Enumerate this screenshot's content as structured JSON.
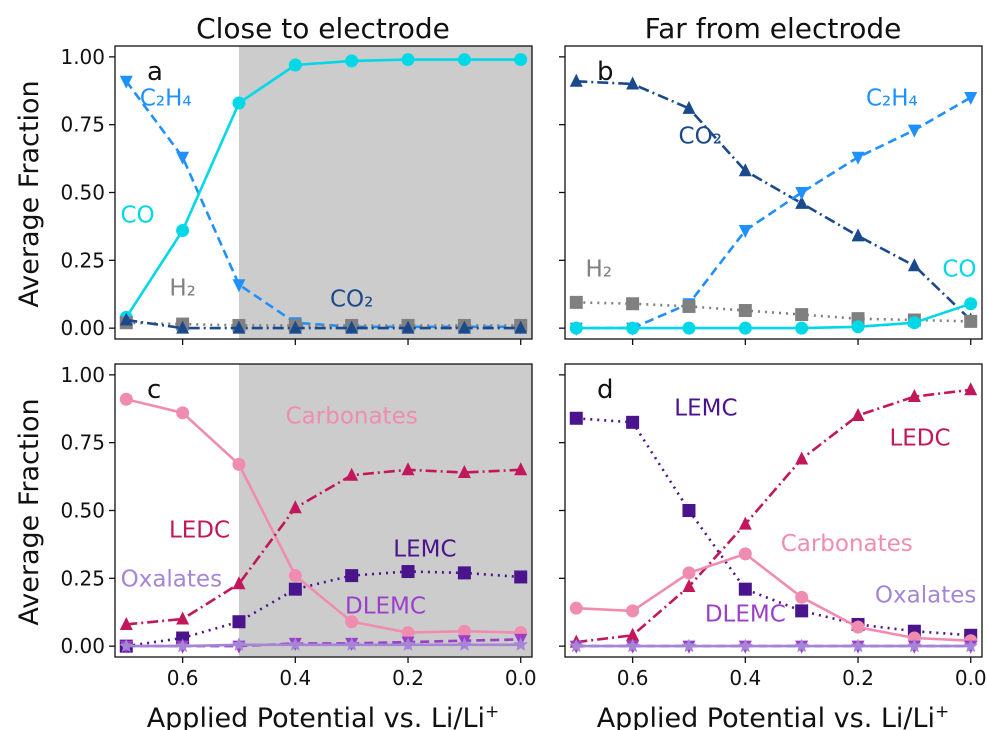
{
  "chart_data": [
    {
      "type": "line",
      "panel": "a",
      "title": "Close to electrode",
      "ylabel": "Average Fraction",
      "xlabel": "",
      "xlim": [
        0.72,
        -0.02
      ],
      "ylim": [
        -0.04,
        1.04
      ],
      "xticks": [
        "0.6",
        "0.4",
        "0.2",
        "0.0"
      ],
      "yticks": [
        "0.00",
        "0.25",
        "0.50",
        "0.75",
        "1.00"
      ],
      "shade_x": [
        0.5,
        0.0
      ],
      "x": [
        0.7,
        0.6,
        0.5,
        0.4,
        0.3,
        0.2,
        0.1,
        0.0
      ],
      "series": [
        {
          "name": "C2H4",
          "color": "#1e90ff",
          "style": "dashed",
          "marker": "tri-down",
          "values": [
            0.91,
            0.63,
            0.16,
            0.02,
            0.005,
            0.005,
            0.005,
            0.005
          ]
        },
        {
          "name": "CO",
          "color": "#00d8e8",
          "style": "solid",
          "marker": "circle",
          "values": [
            0.04,
            0.36,
            0.83,
            0.97,
            0.985,
            0.99,
            0.99,
            0.99
          ]
        },
        {
          "name": "H2",
          "color": "#808080",
          "style": "dotted",
          "marker": "square",
          "values": [
            0.02,
            0.015,
            0.01,
            0.01,
            0.01,
            0.01,
            0.01,
            0.01
          ]
        },
        {
          "name": "CO2",
          "color": "#1b4a8c",
          "style": "dashdot",
          "marker": "tri-up",
          "values": [
            0.03,
            0.0,
            0.0,
            0.0,
            0.0,
            0.0,
            0.0,
            0.0
          ]
        }
      ],
      "annotations": [
        {
          "text": "C₂H₄",
          "series": "C2H4",
          "at": [
            0.63,
            0.82
          ]
        },
        {
          "text": "CO",
          "series": "CO",
          "at": [
            0.68,
            0.39
          ]
        },
        {
          "text": "H₂",
          "series": "H2",
          "at": [
            0.6,
            0.12
          ]
        },
        {
          "text": "CO₂",
          "series": "CO2",
          "at": [
            0.3,
            0.08
          ]
        }
      ]
    },
    {
      "type": "line",
      "panel": "b",
      "title": "Far from electrode",
      "ylabel": "",
      "xlabel": "",
      "xlim": [
        0.72,
        -0.02
      ],
      "ylim": [
        -0.04,
        1.04
      ],
      "xticks": [
        "0.6",
        "0.4",
        "0.2",
        "0.0"
      ],
      "yticks": [],
      "shade_x": null,
      "x": [
        0.7,
        0.6,
        0.5,
        0.4,
        0.3,
        0.2,
        0.1,
        0.0
      ],
      "series": [
        {
          "name": "CO2",
          "color": "#1b4a8c",
          "style": "dashdot",
          "marker": "tri-up",
          "values": [
            0.91,
            0.9,
            0.81,
            0.58,
            0.46,
            0.34,
            0.23,
            0.03
          ]
        },
        {
          "name": "C2H4",
          "color": "#1e90ff",
          "style": "dashed",
          "marker": "tri-down",
          "values": [
            0.0,
            0.0,
            0.09,
            0.36,
            0.5,
            0.63,
            0.73,
            0.85
          ]
        },
        {
          "name": "H2",
          "color": "#808080",
          "style": "dotted",
          "marker": "square",
          "values": [
            0.095,
            0.09,
            0.08,
            0.065,
            0.05,
            0.035,
            0.03,
            0.025
          ]
        },
        {
          "name": "CO",
          "color": "#00d8e8",
          "style": "solid",
          "marker": "circle",
          "values": [
            0.0,
            0.0,
            0.0,
            0.0,
            0.0,
            0.005,
            0.02,
            0.09
          ]
        }
      ],
      "annotations": [
        {
          "text": "CO₂",
          "series": "CO2",
          "at": [
            0.48,
            0.68
          ]
        },
        {
          "text": "C₂H₄",
          "series": "C2H4",
          "at": [
            0.14,
            0.82
          ]
        },
        {
          "text": "H₂",
          "series": "H2",
          "at": [
            0.66,
            0.19
          ]
        },
        {
          "text": "CO",
          "series": "CO",
          "at": [
            0.02,
            0.19
          ]
        }
      ]
    },
    {
      "type": "line",
      "panel": "c",
      "title": "",
      "ylabel": "Average Fraction",
      "xlabel": "Applied Potential vs. Li/Li",
      "xlim": [
        0.72,
        -0.02
      ],
      "ylim": [
        -0.04,
        1.04
      ],
      "xticks": [
        "0.6",
        "0.4",
        "0.2",
        "0.0"
      ],
      "yticks": [
        "0.00",
        "0.25",
        "0.50",
        "0.75",
        "1.00"
      ],
      "shade_x": [
        0.5,
        0.0
      ],
      "x": [
        0.7,
        0.6,
        0.5,
        0.4,
        0.3,
        0.2,
        0.1,
        0.0
      ],
      "series": [
        {
          "name": "Carbonates",
          "color": "#f08cb0",
          "style": "solid",
          "marker": "circle",
          "values": [
            0.91,
            0.86,
            0.67,
            0.26,
            0.09,
            0.05,
            0.055,
            0.05
          ]
        },
        {
          "name": "LEDC",
          "color": "#c2185b",
          "style": "dashdot",
          "marker": "tri-up",
          "values": [
            0.08,
            0.1,
            0.23,
            0.51,
            0.63,
            0.65,
            0.64,
            0.65
          ]
        },
        {
          "name": "LEMC",
          "color": "#4a148c",
          "style": "dotted",
          "marker": "square",
          "values": [
            0.0,
            0.03,
            0.09,
            0.21,
            0.26,
            0.275,
            0.27,
            0.255
          ]
        },
        {
          "name": "DLEMC",
          "color": "#9c3fc8",
          "style": "dashed",
          "marker": "tri-down",
          "values": [
            0.0,
            0.0,
            0.0,
            0.01,
            0.01,
            0.015,
            0.02,
            0.025
          ]
        },
        {
          "name": "Oxalates",
          "color": "#a586d6",
          "style": "solid",
          "marker": "star",
          "values": [
            0.0,
            0.0,
            0.005,
            0.005,
            0.005,
            0.005,
            0.005,
            0.005
          ]
        }
      ],
      "annotations": [
        {
          "text": "Carbonates",
          "series": "Carbonates",
          "at": [
            0.3,
            0.82
          ]
        },
        {
          "text": "LEDC",
          "series": "LEDC",
          "at": [
            0.57,
            0.4
          ]
        },
        {
          "text": "LEMC",
          "series": "LEMC",
          "at": [
            0.17,
            0.33
          ]
        },
        {
          "text": "Oxalates",
          "series": "Oxalates",
          "at": [
            0.62,
            0.22
          ]
        },
        {
          "text": "DLEMC",
          "series": "DLEMC",
          "at": [
            0.24,
            0.12
          ]
        }
      ]
    },
    {
      "type": "line",
      "panel": "d",
      "title": "",
      "ylabel": "",
      "xlabel": "Applied Potential vs. Li/Li",
      "xlim": [
        0.72,
        -0.02
      ],
      "ylim": [
        -0.04,
        1.04
      ],
      "xticks": [
        "0.6",
        "0.4",
        "0.2",
        "0.0"
      ],
      "yticks": [],
      "shade_x": null,
      "x": [
        0.7,
        0.6,
        0.5,
        0.4,
        0.3,
        0.2,
        0.1,
        0.0
      ],
      "series": [
        {
          "name": "LEMC",
          "color": "#4a148c",
          "style": "dotted",
          "marker": "square",
          "values": [
            0.84,
            0.825,
            0.5,
            0.21,
            0.13,
            0.08,
            0.055,
            0.04
          ]
        },
        {
          "name": "LEDC",
          "color": "#c2185b",
          "style": "dashdot",
          "marker": "tri-up",
          "values": [
            0.015,
            0.04,
            0.22,
            0.45,
            0.69,
            0.85,
            0.92,
            0.945
          ]
        },
        {
          "name": "Carbonates",
          "color": "#f08cb0",
          "style": "solid",
          "marker": "circle",
          "values": [
            0.14,
            0.13,
            0.27,
            0.34,
            0.18,
            0.07,
            0.03,
            0.02
          ]
        },
        {
          "name": "DLEMC",
          "color": "#9c3fc8",
          "style": "dashed",
          "marker": "tri-down",
          "values": [
            0.0,
            0.0,
            0.0,
            0.0,
            0.0,
            0.0,
            0.0,
            0.0
          ]
        },
        {
          "name": "Oxalates",
          "color": "#a586d6",
          "style": "solid",
          "marker": "star",
          "values": [
            0.0,
            0.0,
            0.0,
            0.0,
            0.0,
            0.0,
            0.0,
            0.0
          ]
        }
      ],
      "annotations": [
        {
          "text": "LEMC",
          "series": "LEMC",
          "at": [
            0.47,
            0.85
          ]
        },
        {
          "text": "LEDC",
          "series": "LEDC",
          "at": [
            0.09,
            0.74
          ]
        },
        {
          "text": "Carbonates",
          "series": "Carbonates",
          "at": [
            0.22,
            0.35
          ]
        },
        {
          "text": "DLEMC",
          "series": "DLEMC",
          "at": [
            0.4,
            0.09
          ]
        },
        {
          "text": "Oxalates",
          "series": "Oxalates",
          "at": [
            0.08,
            0.16
          ]
        }
      ]
    }
  ],
  "xlabel_superscript": "+",
  "panel_letters": [
    "a",
    "b",
    "c",
    "d"
  ],
  "colors": {
    "shade": "#cccccc",
    "axes": "#111111"
  }
}
